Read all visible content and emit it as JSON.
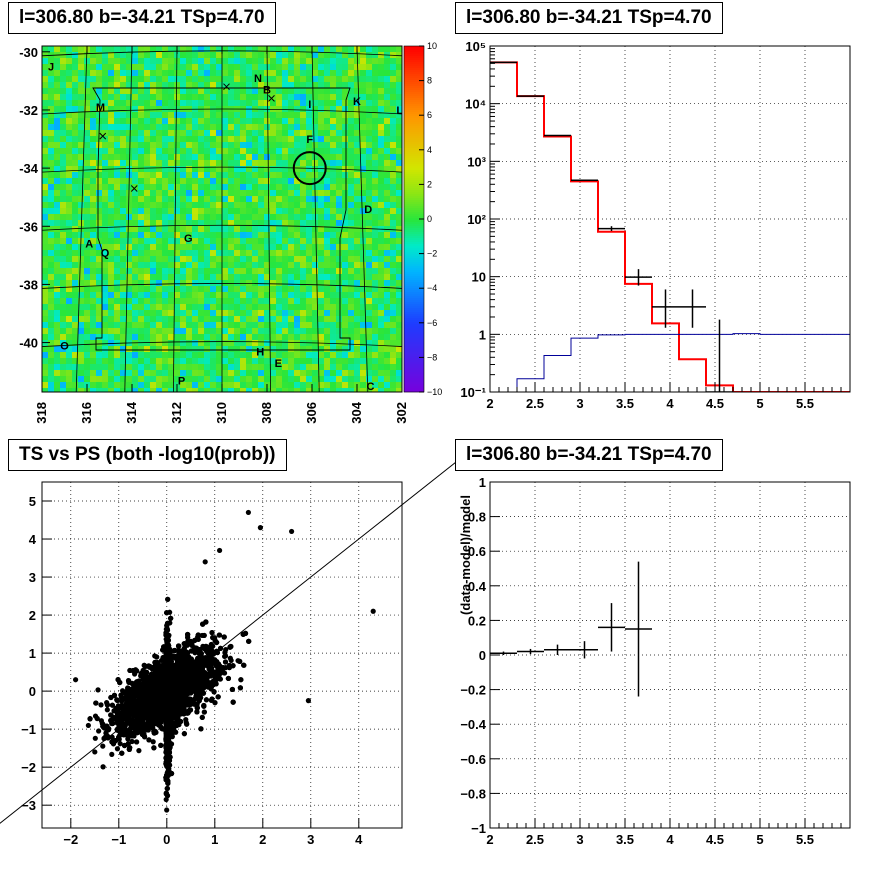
{
  "chart_data": [
    {
      "type": "heatmap",
      "title": "l=306.80 b=-34.21 TSp=4.70",
      "x_ticks": [
        "318",
        "316",
        "314",
        "312",
        "310",
        "308",
        "306",
        "304",
        "302"
      ],
      "y_ticks": [
        "-30",
        "-32",
        "-34",
        "-36",
        "-38",
        "-40"
      ],
      "xlim": [
        318,
        302
      ],
      "ylim": [
        -41.7,
        -29.8
      ],
      "colorbar_ticks": [
        "10",
        "8",
        "6",
        "4",
        "2",
        "0",
        "−2",
        "−4",
        "−6",
        "−8",
        "−10"
      ],
      "colorbar_range": [
        -10,
        10
      ],
      "dominant_value": 0,
      "labels": [
        {
          "text": "J",
          "l": 317.6,
          "b": -30.5
        },
        {
          "text": "N",
          "l": 308.4,
          "b": -30.9
        },
        {
          "text": "B",
          "l": 308.0,
          "b": -31.3
        },
        {
          "text": "K",
          "l": 304.0,
          "b": -31.7
        },
        {
          "text": "M",
          "l": 315.4,
          "b": -31.9
        },
        {
          "text": "L",
          "l": 302.1,
          "b": -32.0
        },
        {
          "text": "I",
          "l": 306.1,
          "b": -31.8
        },
        {
          "text": "F",
          "l": 306.1,
          "b": -33.0
        },
        {
          "text": "D",
          "l": 303.5,
          "b": -35.4
        },
        {
          "text": "A",
          "l": 315.9,
          "b": -36.6
        },
        {
          "text": "Q",
          "l": 315.2,
          "b": -36.9
        },
        {
          "text": "G",
          "l": 311.5,
          "b": -36.4
        },
        {
          "text": "O",
          "l": 317.0,
          "b": -40.1
        },
        {
          "text": "H",
          "l": 308.3,
          "b": -40.3
        },
        {
          "text": "E",
          "l": 307.5,
          "b": -40.7
        },
        {
          "text": "P",
          "l": 311.8,
          "b": -41.3
        },
        {
          "text": "C",
          "l": 303.4,
          "b": -41.5
        }
      ],
      "markers": [
        {
          "l": 309.8,
          "b": -31.2
        },
        {
          "l": 307.8,
          "b": -31.6
        },
        {
          "l": 315.3,
          "b": -32.9
        },
        {
          "l": 313.9,
          "b": -34.7
        }
      ],
      "circle": {
        "l": 306.1,
        "b": -34.0,
        "radius_deg": 0.55
      }
    },
    {
      "type": "histogram",
      "title": "l=306.80 b=-34.21 TSp=4.70",
      "yscale": "log",
      "xlim": [
        2,
        6
      ],
      "ylim": [
        0.1,
        100000
      ],
      "x_ticks": [
        "2",
        "2.5",
        "3",
        "3.5",
        "4",
        "4.5",
        "5",
        "5.5"
      ],
      "y_ticks": [
        "10⁻¹",
        "1",
        "10",
        "10²",
        "10³",
        "10⁴",
        "10⁵"
      ],
      "bin_edges": [
        2.0,
        2.3,
        2.6,
        2.9,
        3.2,
        3.5,
        3.8,
        4.1,
        4.4,
        4.7,
        5.0,
        5.3,
        5.6,
        5.9,
        6.0
      ],
      "series": [
        {
          "color": "#ff0000",
          "values": [
            52000,
            13500,
            2700,
            450,
            60,
            7.5,
            1.55,
            0.37,
            0.13,
            0.1,
            0.1,
            0.1,
            0.1,
            0.1
          ]
        },
        {
          "color": "#000099",
          "values": [
            0.1,
            0.17,
            0.43,
            0.86,
            0.98,
            1.0,
            1.0,
            1.0,
            1.0,
            1.03,
            1.0,
            1.0,
            1.0,
            1.0
          ]
        }
      ],
      "data_points": [
        {
          "x": 2.15,
          "y": 52000
        },
        {
          "x": 2.45,
          "y": 13500
        },
        {
          "x": 2.75,
          "y": 2800
        },
        {
          "x": 3.05,
          "y": 470
        },
        {
          "x": 3.35,
          "y": 68,
          "ylo": 62,
          "yhi": 75
        },
        {
          "x": 3.65,
          "y": 9.8,
          "ylo": 7.0,
          "yhi": 13.5
        },
        {
          "x": 3.95,
          "y": 3.0,
          "ylo": 1.3,
          "yhi": 6.0
        },
        {
          "x": 4.25,
          "y": 3.0,
          "ylo": 1.3,
          "yhi": 6.0
        },
        {
          "x": 4.55,
          "y": 0.1,
          "ylo": 0.1,
          "yhi": 1.8
        }
      ]
    },
    {
      "type": "scatter",
      "title": "TS vs PS (both -log10(prob))",
      "xlim": [
        -2.6,
        4.9
      ],
      "ylim": [
        -3.6,
        5.5
      ],
      "x_ticks": [
        "−2",
        "−1",
        "0",
        "1",
        "2",
        "3",
        "4"
      ],
      "y_ticks": [
        "−3",
        "−2",
        "−1",
        "0",
        "1",
        "2",
        "3",
        "4",
        "5"
      ],
      "n_points": 5000,
      "line": {
        "slope": 1,
        "intercept": 0
      },
      "outliers": [
        [
          1.7,
          4.7
        ],
        [
          1.95,
          4.3
        ],
        [
          2.6,
          4.2
        ],
        [
          4.3,
          2.1
        ],
        [
          2.95,
          -0.25
        ],
        [
          1.1,
          3.7
        ],
        [
          0.8,
          3.4
        ],
        [
          -1.5,
          -1.6
        ],
        [
          -1.9,
          0.3
        ]
      ]
    },
    {
      "type": "errorbar",
      "title": "l=306.80 b=-34.21 TSp=4.70",
      "ylabel": "(data-model)/model",
      "xlim": [
        2,
        6
      ],
      "ylim": [
        -1,
        1
      ],
      "x_ticks": [
        "2",
        "2.5",
        "3",
        "3.5",
        "4",
        "4.5",
        "5",
        "5.5"
      ],
      "y_ticks": [
        "−1",
        "−0.8",
        "−0.6",
        "−0.4",
        "−0.2",
        "0",
        "0.2",
        "0.4",
        "0.6",
        "0.8",
        "1"
      ],
      "points": [
        {
          "x": 2.15,
          "y": 0.01,
          "err": 0.01
        },
        {
          "x": 2.45,
          "y": 0.02,
          "err": 0.015
        },
        {
          "x": 2.75,
          "y": 0.03,
          "err": 0.03
        },
        {
          "x": 3.05,
          "y": 0.03,
          "err": 0.05
        },
        {
          "x": 3.35,
          "y": 0.16,
          "err": 0.14
        },
        {
          "x": 3.65,
          "y": 0.15,
          "err": 0.39
        }
      ]
    }
  ]
}
